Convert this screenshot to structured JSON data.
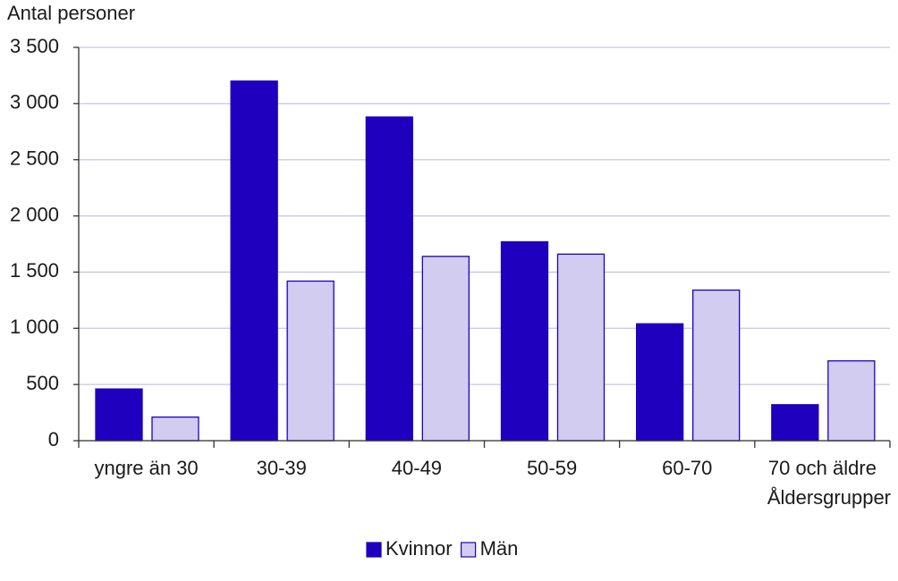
{
  "chart_data": {
    "type": "bar",
    "y_label": "Antal personer",
    "x_label": "Åldersgrupper",
    "categories": [
      "yngre än 30",
      "30-39",
      "40-49",
      "50-59",
      "60-70",
      "70 och äldre"
    ],
    "series": [
      {
        "name": "Kvinnor",
        "color": "#1e00be",
        "values": [
          460,
          3200,
          2880,
          1770,
          1040,
          320
        ]
      },
      {
        "name": "Män",
        "color": "#d2ccf0",
        "values": [
          210,
          1420,
          1640,
          1660,
          1340,
          710
        ]
      }
    ],
    "ylim": [
      0,
      3500
    ],
    "yticks": [
      0,
      500,
      {
        "value": 1000,
        "label": "1 000"
      },
      {
        "value": 1500,
        "label": "1 500"
      },
      {
        "value": 2000,
        "label": "2 000"
      },
      {
        "value": 2500,
        "label": "2 500"
      },
      {
        "value": 3000,
        "label": "3 000"
      },
      {
        "value": 3500,
        "label": "3 500"
      }
    ],
    "grid": true,
    "legend": "bottom"
  }
}
